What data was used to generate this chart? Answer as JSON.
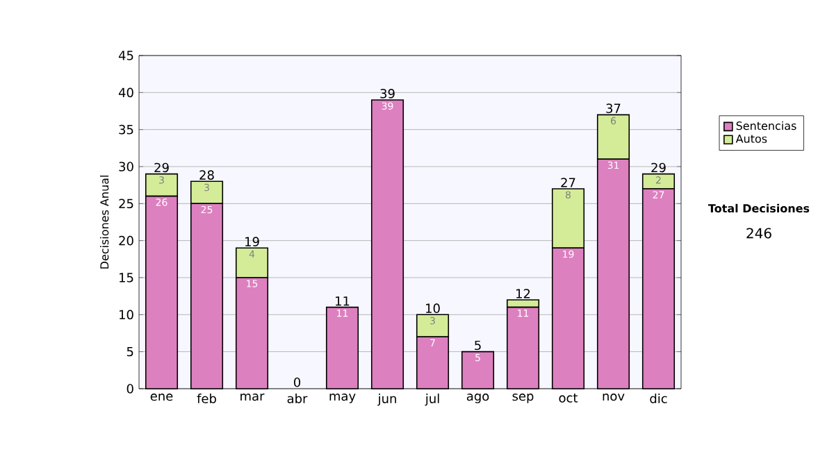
{
  "chart_data": {
    "type": "bar",
    "stacked": true,
    "ylabel": "Decisiones Anual",
    "categories": [
      "ene",
      "feb",
      "mar",
      "abr",
      "may",
      "jun",
      "jul",
      "ago",
      "sep",
      "oct",
      "nov",
      "dic"
    ],
    "series": [
      {
        "name": "Sentencias",
        "color": "#dd80c0",
        "values": [
          26,
          25,
          15,
          0,
          11,
          39,
          7,
          5,
          11,
          19,
          31,
          27
        ],
        "value_labels": [
          "26",
          "25",
          "15",
          null,
          "11",
          "39",
          "7",
          "5",
          "11",
          "19",
          "31",
          "27"
        ]
      },
      {
        "name": "Autos",
        "color": "#d4ec98",
        "values": [
          3,
          3,
          4,
          0,
          0,
          0,
          3,
          0,
          1,
          8,
          6,
          2
        ],
        "value_labels": [
          "3",
          "3",
          "4",
          null,
          null,
          null,
          "3",
          null,
          null,
          "8",
          "6",
          "2"
        ]
      }
    ],
    "totals": [
      "29",
      "28",
      "19",
      "0",
      "11",
      "39",
      "10",
      "5",
      "12",
      "27",
      "37",
      "29"
    ],
    "ylim": [
      0,
      45
    ],
    "yticks": [
      0,
      5,
      10,
      15,
      20,
      25,
      30,
      35,
      40,
      45
    ],
    "grid": "y",
    "legend": "right",
    "annotations": [
      "Total Decisiones",
      "246"
    ]
  }
}
